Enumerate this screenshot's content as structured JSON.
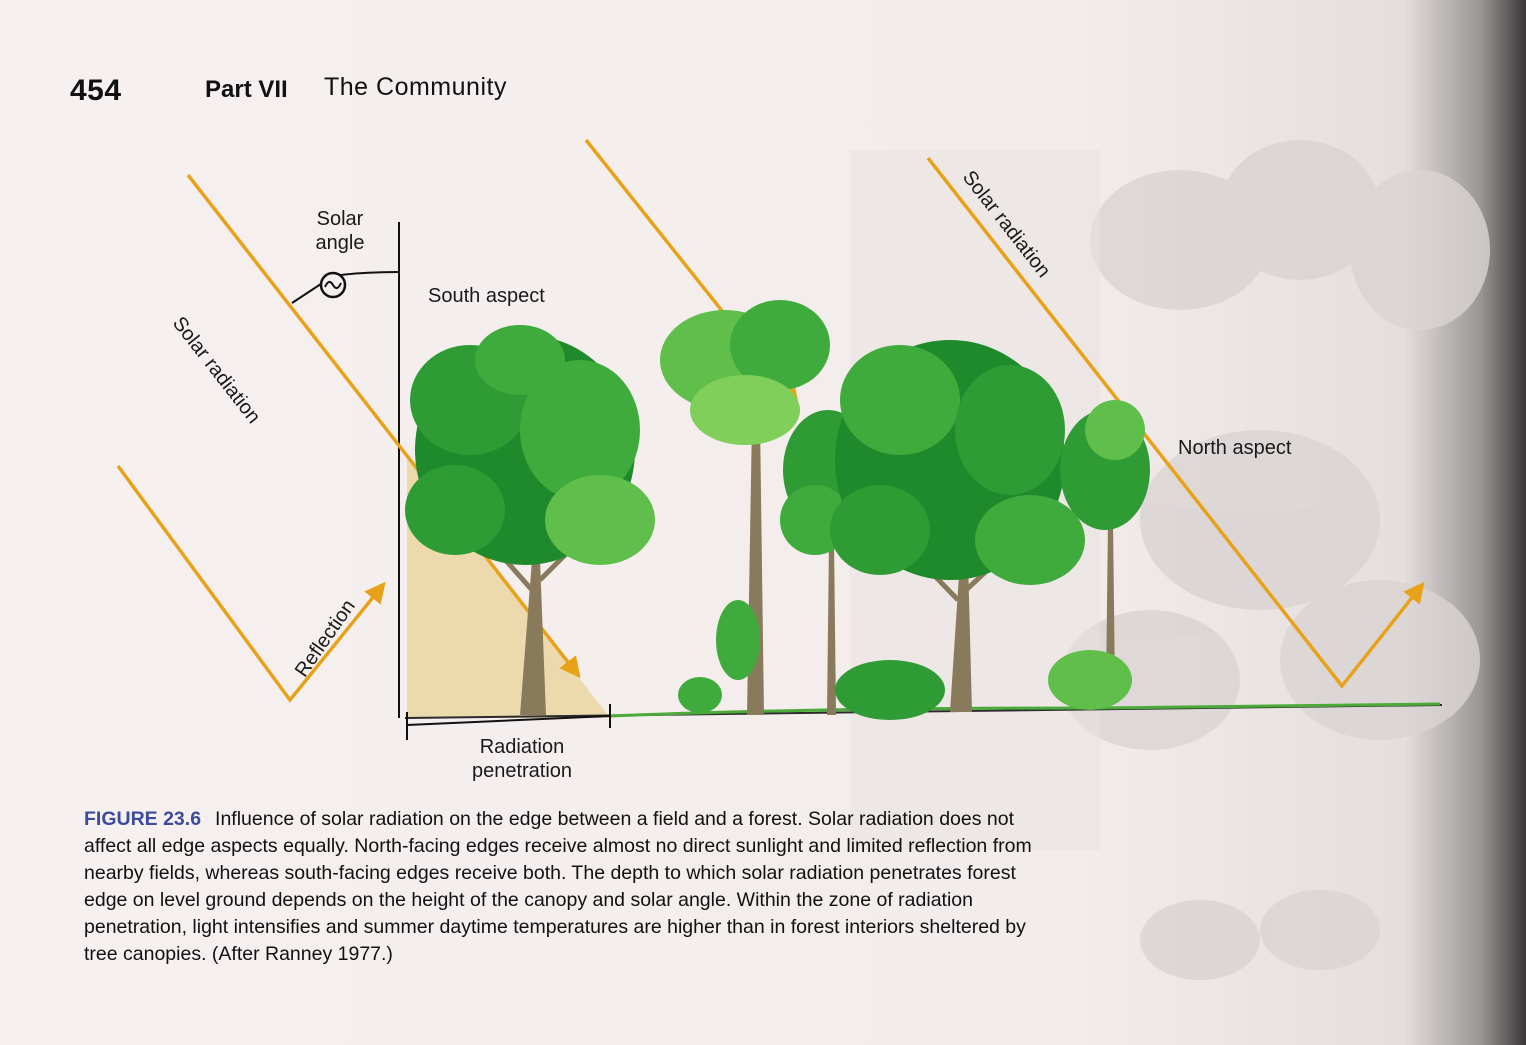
{
  "header": {
    "page_number": "454",
    "part": "Part VII",
    "part_title": "The Community"
  },
  "diagram": {
    "solar_angle_label_line1": "Solar",
    "solar_angle_label_line2": "angle",
    "south_aspect": "South aspect",
    "north_aspect": "North aspect",
    "solar_radiation_left": "Solar radiation",
    "solar_radiation_right": "Solar radiation",
    "reflection": "Reflection",
    "radiation_penetration_line1": "Radiation",
    "radiation_penetration_line2": "penetration"
  },
  "caption": {
    "figure_label": "FIGURE 23.6",
    "text": "Influence of solar radiation on the edge between a field and a forest. Solar radiation does not affect all edge aspects equally. North-facing edges receive almost no direct sunlight and limited reflection from nearby fields, whereas south-facing edges receive both. The depth to which solar radiation penetrates forest edge on level ground depends on the height of the canopy and solar angle. Within the zone of radiation penetration, light intensifies and summer daytime temperatures are higher than in forest interiors sheltered by tree canopies. (After Ranney 1977.)"
  },
  "colors": {
    "arrow": "#e8a21a",
    "penetration_zone": "#ecd7a4",
    "foliage_dark": "#1f8a2c",
    "foliage_light": "#5fbf4a",
    "trunk": "#8a7a5c",
    "caption_label": "#3c4b9a"
  }
}
